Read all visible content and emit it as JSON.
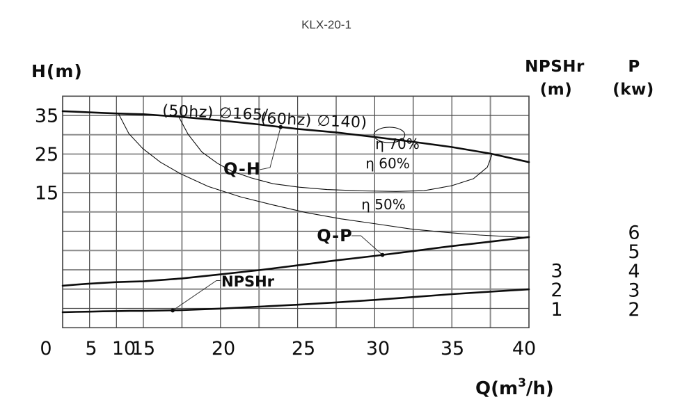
{
  "title": "KLX-20-1",
  "axis_labels": {
    "h": "H(m)",
    "q_prefix": "Q(m",
    "q_sup": "3",
    "q_suffix": "/h)",
    "npshr": "NPSHr",
    "npshr_unit": "(m)",
    "p": "P",
    "p_unit": "(kw)"
  },
  "curve_labels": {
    "qh": "Q-H",
    "qp": "Q-P",
    "npshr": "NPSHr"
  },
  "impeller_label": {
    "part1": "(50hz) ∅165/",
    "part2": "(60hz) ∅140)"
  },
  "efficiency_labels": {
    "eta70": "η 70%",
    "eta60": "η 60%",
    "eta50": "η 50%"
  },
  "line_color": "#0d0d0d",
  "grid_color": "#474747",
  "grid_thick_color": "#8c8c8c",
  "chart_data": {
    "type": "line",
    "title": "KLX-20-1",
    "xlabel": "Q(m3/h)",
    "x_axis_note": "non-linear x axis: 0-15 compressed (one gridline per 5), 15-40 expanded (one gridline per 2.5)",
    "x_ticks": [
      0,
      5,
      10,
      15,
      20,
      25,
      30,
      35,
      40
    ],
    "h_axis": {
      "label": "H(m)",
      "ticks": [
        35,
        25,
        15
      ]
    },
    "npshr_axis": {
      "label": "NPSHr (m)",
      "ticks": [
        3,
        2,
        1
      ]
    },
    "p_axis": {
      "label": "P (kw)",
      "ticks": [
        6,
        5,
        4,
        3,
        2
      ]
    },
    "q_samples": [
      0,
      2.5,
      5,
      7.5,
      10,
      12.5,
      15,
      17.5,
      20,
      22.5,
      25,
      27.5,
      30,
      32.5,
      35,
      37.5,
      40
    ],
    "series": [
      {
        "name": "Q-H",
        "unit": "m",
        "values": [
          36.1,
          35.95,
          35.8,
          35.65,
          35.5,
          35.4,
          35.3,
          34.6,
          33.7,
          32.65,
          31.5,
          30.6,
          29.4,
          28.15,
          26.8,
          25.1,
          22.9
        ]
      },
      {
        "name": "Q-P",
        "unit": "kw",
        "values": [
          3.22,
          3.28,
          3.33,
          3.37,
          3.41,
          3.43,
          3.45,
          3.6,
          3.81,
          4.03,
          4.28,
          4.54,
          4.77,
          5.02,
          5.28,
          5.51,
          5.75
        ]
      },
      {
        "name": "NPSHr",
        "unit": "m",
        "values": [
          0.83,
          0.85,
          0.86,
          0.88,
          0.89,
          0.9,
          0.9,
          0.94,
          1.02,
          1.12,
          1.22,
          1.34,
          1.47,
          1.62,
          1.77,
          1.9,
          2.02
        ]
      }
    ],
    "efficiency_contours": [
      {
        "name": "η 60%",
        "points_qh": [
          [
            17.3,
            34.6
          ],
          [
            17.9,
            30.1
          ],
          [
            18.8,
            25.5
          ],
          [
            19.8,
            22.6
          ],
          [
            20.7,
            20.6
          ],
          [
            22.0,
            18.8
          ],
          [
            23.4,
            17.3
          ],
          [
            25.1,
            16.4
          ],
          [
            26.9,
            15.8
          ],
          [
            29.2,
            15.45
          ],
          [
            31.4,
            15.3
          ],
          [
            33.2,
            15.5
          ],
          [
            35.0,
            16.8
          ],
          [
            36.4,
            18.6
          ],
          [
            37.3,
            21.6
          ],
          [
            37.6,
            24.8
          ]
        ]
      },
      {
        "name": "η 50%",
        "points_qh": [
          [
            10.4,
            35.4
          ],
          [
            12.3,
            30.3
          ],
          [
            14.9,
            26.4
          ],
          [
            16.1,
            22.9
          ],
          [
            17.4,
            19.9
          ],
          [
            19.2,
            16.6
          ],
          [
            21.3,
            13.9
          ],
          [
            23.3,
            11.9
          ],
          [
            25.6,
            9.8
          ],
          [
            27.8,
            8.2
          ],
          [
            30.1,
            6.9
          ],
          [
            32.3,
            5.6
          ],
          [
            34.6,
            4.7
          ],
          [
            36.8,
            4.0
          ],
          [
            39.1,
            3.5
          ],
          [
            40,
            3.4
          ]
        ]
      }
    ],
    "bep_ellipse": {
      "label": "η 70%",
      "q": 30.95,
      "h": 29.95,
      "rq": 1.0,
      "rh": 2.0
    },
    "callouts": [
      {
        "series": "Q-H",
        "q": 23.9,
        "value": 32.0
      },
      {
        "series": "Q-P",
        "q": 30.5,
        "value": 4.82
      },
      {
        "series": "NPSHr",
        "q": 16.9,
        "value": 0.92
      }
    ]
  }
}
